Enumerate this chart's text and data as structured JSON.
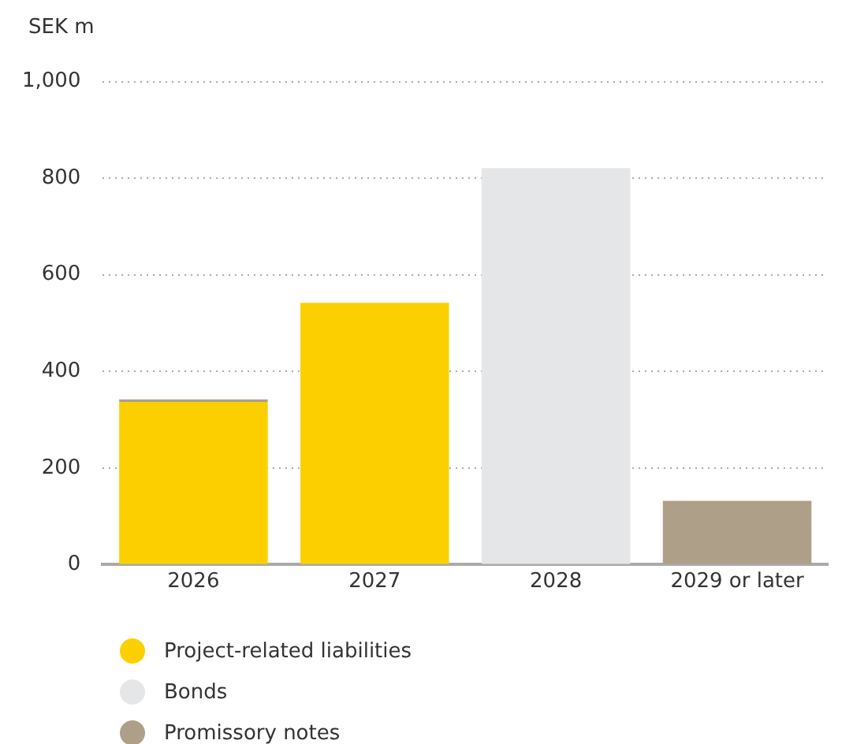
{
  "chart_data": {
    "type": "bar",
    "ylabel": "SEK m",
    "categories": [
      "2026",
      "2027",
      "2028",
      "2029 or later"
    ],
    "stacked": true,
    "series": [
      {
        "name": "Project-related liabilities",
        "color": "#fcd000",
        "values": [
          337,
          542,
          null,
          null
        ]
      },
      {
        "name": "Bonds",
        "color": "#e5e6e8",
        "values": [
          0,
          0,
          821,
          0
        ]
      },
      {
        "name": "Promissory notes",
        "color": "#ae9f88",
        "values": [
          5,
          0,
          0,
          132
        ]
      }
    ],
    "ylim": [
      0,
      1000
    ],
    "yticks": [
      0,
      200,
      400,
      600,
      800,
      {
        "value": 1000,
        "label": "1,000"
      }
    ],
    "grid": "y",
    "legend": "bottom left"
  }
}
